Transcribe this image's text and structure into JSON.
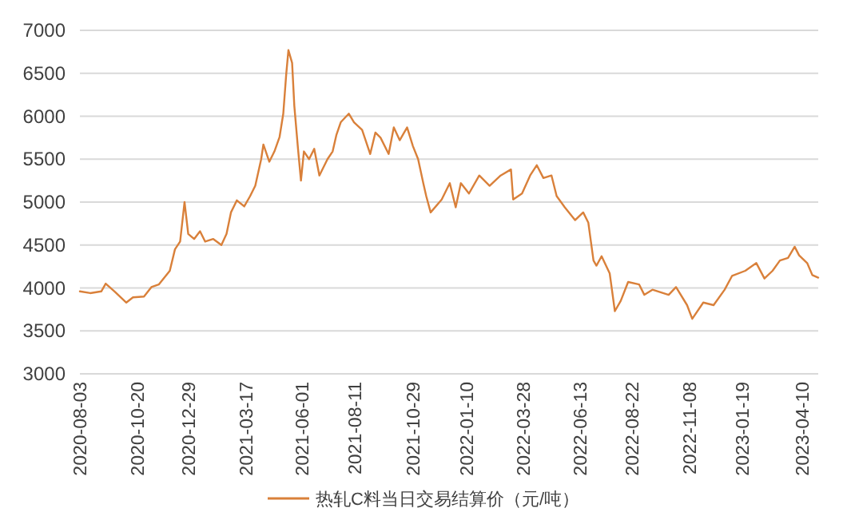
{
  "chart_data": {
    "type": "line",
    "x": [
      "2020-08-03",
      "2020-08-17",
      "2020-09-01",
      "2020-09-07",
      "2020-09-19",
      "2020-10-05",
      "2020-10-14",
      "2020-10-29",
      "2020-11-08",
      "2020-11-18",
      "2020-12-03",
      "2020-12-10",
      "2020-12-17",
      "2020-12-23",
      "2020-12-28",
      "2021-01-05",
      "2021-01-13",
      "2021-01-20",
      "2021-01-31",
      "2021-02-11",
      "2021-02-18",
      "2021-02-24",
      "2021-03-04",
      "2021-03-14",
      "2021-03-22",
      "2021-03-29",
      "2021-04-06",
      "2021-04-09",
      "2021-04-17",
      "2021-04-24",
      "2021-05-01",
      "2021-05-06",
      "2021-05-10",
      "2021-05-13",
      "2021-05-18",
      "2021-05-21",
      "2021-05-26",
      "2021-05-30",
      "2021-06-03",
      "2021-06-10",
      "2021-06-17",
      "2021-06-24",
      "2021-07-05",
      "2021-07-12",
      "2021-07-17",
      "2021-07-23",
      "2021-08-03",
      "2021-08-10",
      "2021-08-21",
      "2021-09-01",
      "2021-09-08",
      "2021-09-15",
      "2021-09-26",
      "2021-10-03",
      "2021-10-11",
      "2021-10-21",
      "2021-10-29",
      "2021-11-05",
      "2021-11-12",
      "2021-11-16",
      "2021-11-22",
      "2021-12-07",
      "2021-12-18",
      "2021-12-26",
      "2022-01-02",
      "2022-01-13",
      "2022-01-27",
      "2022-02-10",
      "2022-02-25",
      "2022-03-11",
      "2022-03-14",
      "2022-03-26",
      "2022-04-06",
      "2022-04-15",
      "2022-04-24",
      "2022-05-05",
      "2022-05-12",
      "2022-05-23",
      "2022-06-06",
      "2022-06-17",
      "2022-06-24",
      "2022-07-01",
      "2022-07-05",
      "2022-07-12",
      "2022-07-23",
      "2022-07-30",
      "2022-08-07",
      "2022-08-17",
      "2022-09-01",
      "2022-09-08",
      "2022-09-19",
      "2022-09-30",
      "2022-10-11",
      "2022-10-21",
      "2022-11-05",
      "2022-11-12",
      "2022-11-27",
      "2022-12-11",
      "2022-12-26",
      "2023-01-05",
      "2023-01-23",
      "2023-02-07",
      "2023-02-18",
      "2023-03-01",
      "2023-03-11",
      "2023-03-22",
      "2023-03-31",
      "2023-04-06",
      "2023-04-17",
      "2023-04-24",
      "2023-05-02"
    ],
    "series": [
      {
        "name": "热轧C料当日交易结算价（元/吨）",
        "color": "#d9803a",
        "values": [
          3960,
          3940,
          3960,
          4050,
          3960,
          3830,
          3890,
          3900,
          4010,
          4040,
          4200,
          4450,
          4540,
          5000,
          4630,
          4570,
          4660,
          4540,
          4570,
          4500,
          4630,
          4880,
          5020,
          4950,
          5070,
          5190,
          5500,
          5670,
          5470,
          5590,
          5760,
          6030,
          6490,
          6770,
          6620,
          6120,
          5620,
          5250,
          5590,
          5500,
          5620,
          5310,
          5500,
          5590,
          5780,
          5930,
          6030,
          5930,
          5840,
          5560,
          5810,
          5750,
          5560,
          5870,
          5720,
          5870,
          5650,
          5500,
          5220,
          5070,
          4880,
          5030,
          5220,
          4940,
          5220,
          5100,
          5310,
          5190,
          5310,
          5380,
          5030,
          5100,
          5310,
          5430,
          5280,
          5310,
          5070,
          4940,
          4790,
          4880,
          4760,
          4320,
          4260,
          4370,
          4170,
          3730,
          3850,
          4070,
          4040,
          3920,
          3980,
          3950,
          3920,
          4010,
          3800,
          3640,
          3830,
          3800,
          3980,
          4140,
          4200,
          4290,
          4110,
          4200,
          4320,
          4350,
          4480,
          4380,
          4290,
          4150,
          4120
        ]
      }
    ],
    "xlim": [
      "2020-08-03",
      "2023-05-02"
    ],
    "xticks": [
      "2020-08-03",
      "2020-10-20",
      "2020-12-29",
      "2021-03-17",
      "2021-06-01",
      "2021-08-11",
      "2021-10-29",
      "2022-01-10",
      "2022-03-28",
      "2022-06-13",
      "2022-08-22",
      "2022-11-08",
      "2023-01-19",
      "2023-04-10"
    ],
    "ylim": [
      3000,
      7000
    ],
    "yticks": [
      3000,
      3500,
      4000,
      4500,
      5000,
      5500,
      6000,
      6500,
      7000
    ],
    "grid": "y",
    "legend": "bottom",
    "marker": "none",
    "line_style": "solid"
  }
}
